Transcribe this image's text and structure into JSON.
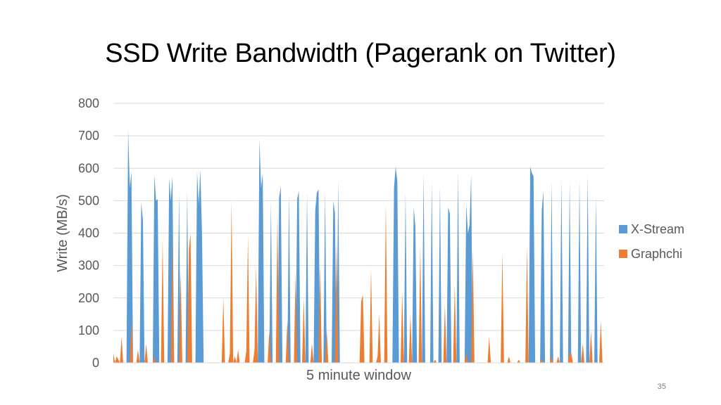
{
  "slide": {
    "title": "SSD Write Bandwidth (Pagerank on Twitter)",
    "page_number": "35"
  },
  "chart_data": {
    "type": "area",
    "title": "",
    "xlabel": "5 minute window",
    "ylabel": "Write (MB/s)",
    "ylim": [
      0,
      800
    ],
    "yticks": [
      "0",
      "100",
      "200",
      "300",
      "400",
      "500",
      "600",
      "700",
      "800"
    ],
    "grid": true,
    "legend": "right",
    "n_points": 300,
    "series": [
      {
        "name": "X-Stream",
        "color": "#5B9BD5",
        "points": [
          [
            8,
            0
          ],
          [
            9,
            720
          ],
          [
            10,
            540
          ],
          [
            11,
            590
          ],
          [
            12,
            0
          ],
          [
            16,
            0
          ],
          [
            17,
            495
          ],
          [
            18,
            440
          ],
          [
            19,
            0
          ],
          [
            24,
            0
          ],
          [
            25,
            580
          ],
          [
            26,
            500
          ],
          [
            27,
            505
          ],
          [
            28,
            0
          ],
          [
            33,
            0
          ],
          [
            34,
            570
          ],
          [
            35,
            500
          ],
          [
            36,
            575
          ],
          [
            37,
            0
          ],
          [
            39,
            0
          ],
          [
            40,
            525
          ],
          [
            41,
            0
          ],
          [
            44,
            0
          ],
          [
            45,
            530
          ],
          [
            46,
            0
          ],
          [
            50,
            0
          ],
          [
            51,
            590
          ],
          [
            52,
            490
          ],
          [
            53,
            595
          ],
          [
            54,
            400
          ],
          [
            55,
            0
          ],
          [
            88,
            0
          ],
          [
            89,
            690
          ],
          [
            90,
            540
          ],
          [
            91,
            585
          ],
          [
            92,
            0
          ],
          [
            95,
            0
          ],
          [
            96,
            495
          ],
          [
            97,
            0
          ],
          [
            100,
            0
          ],
          [
            101,
            510
          ],
          [
            102,
            545
          ],
          [
            103,
            0
          ],
          [
            106,
            0
          ],
          [
            107,
            520
          ],
          [
            108,
            0
          ],
          [
            111,
            0
          ],
          [
            112,
            505
          ],
          [
            113,
            530
          ],
          [
            114,
            0
          ],
          [
            117,
            0
          ],
          [
            118,
            525
          ],
          [
            119,
            0
          ],
          [
            122,
            0
          ],
          [
            123,
            470
          ],
          [
            124,
            525
          ],
          [
            125,
            535
          ],
          [
            126,
            0
          ],
          [
            128,
            0
          ],
          [
            129,
            530
          ],
          [
            130,
            0
          ],
          [
            133,
            0
          ],
          [
            134,
            500
          ],
          [
            135,
            460
          ],
          [
            136,
            0
          ],
          [
            137,
            565
          ],
          [
            138,
            0
          ],
          [
            170,
            0
          ],
          [
            171,
            540
          ],
          [
            172,
            605
          ],
          [
            173,
            560
          ],
          [
            174,
            0
          ],
          [
            177,
            0
          ],
          [
            178,
            525
          ],
          [
            179,
            0
          ],
          [
            182,
            0
          ],
          [
            183,
            480
          ],
          [
            184,
            420
          ],
          [
            185,
            0
          ],
          [
            188,
            0
          ],
          [
            189,
            585
          ],
          [
            190,
            0
          ],
          [
            193,
            0
          ],
          [
            194,
            560
          ],
          [
            195,
            0
          ],
          [
            198,
            0
          ],
          [
            199,
            545
          ],
          [
            200,
            0
          ],
          [
            203,
            0
          ],
          [
            204,
            480
          ],
          [
            205,
            460
          ],
          [
            206,
            0
          ],
          [
            209,
            0
          ],
          [
            210,
            590
          ],
          [
            211,
            0
          ],
          [
            214,
            0
          ],
          [
            215,
            490
          ],
          [
            216,
            400
          ],
          [
            217,
            425
          ],
          [
            218,
            580
          ],
          [
            219,
            0
          ],
          [
            253,
            0
          ],
          [
            254,
            605
          ],
          [
            255,
            585
          ],
          [
            256,
            575
          ],
          [
            257,
            0
          ],
          [
            260,
            0
          ],
          [
            261,
            470
          ],
          [
            262,
            530
          ],
          [
            263,
            0
          ],
          [
            266,
            0
          ],
          [
            267,
            560
          ],
          [
            268,
            0
          ],
          [
            272,
            0
          ],
          [
            273,
            565
          ],
          [
            274,
            0
          ],
          [
            277,
            0
          ],
          [
            278,
            560
          ],
          [
            279,
            0
          ],
          [
            283,
            0
          ],
          [
            284,
            565
          ],
          [
            285,
            0
          ],
          [
            288,
            0
          ],
          [
            289,
            580
          ],
          [
            290,
            0
          ],
          [
            293,
            0
          ],
          [
            294,
            515
          ],
          [
            295,
            0
          ]
        ]
      },
      {
        "name": "Graphchi",
        "color": "#ED7D31",
        "points": [
          [
            0,
            30
          ],
          [
            1,
            0
          ],
          [
            2,
            20
          ],
          [
            3,
            10
          ],
          [
            4,
            0
          ],
          [
            5,
            80
          ],
          [
            6,
            0
          ],
          [
            9,
            0
          ],
          [
            10,
            0
          ],
          [
            11,
            130
          ],
          [
            12,
            0
          ],
          [
            13,
            0
          ],
          [
            14,
            0
          ],
          [
            15,
            40
          ],
          [
            16,
            0
          ],
          [
            18,
            0
          ],
          [
            19,
            0
          ],
          [
            20,
            60
          ],
          [
            21,
            0
          ],
          [
            24,
            0
          ],
          [
            25,
            20
          ],
          [
            26,
            0
          ],
          [
            29,
            0
          ],
          [
            30,
            380
          ],
          [
            31,
            0
          ],
          [
            32,
            0
          ],
          [
            35,
            0
          ],
          [
            36,
            390
          ],
          [
            37,
            0
          ],
          [
            40,
            0
          ],
          [
            41,
            280
          ],
          [
            42,
            0
          ],
          [
            45,
            0
          ],
          [
            46,
            350
          ],
          [
            47,
            400
          ],
          [
            48,
            0
          ],
          [
            54,
            0
          ],
          [
            55,
            0
          ],
          [
            66,
            0
          ],
          [
            67,
            200
          ],
          [
            68,
            0
          ],
          [
            70,
            0
          ],
          [
            71,
            30
          ],
          [
            72,
            500
          ],
          [
            73,
            0
          ],
          [
            74,
            20
          ],
          [
            75,
            0
          ],
          [
            76,
            40
          ],
          [
            77,
            0
          ],
          [
            80,
            0
          ],
          [
            81,
            35
          ],
          [
            82,
            390
          ],
          [
            83,
            0
          ],
          [
            85,
            0
          ],
          [
            86,
            40
          ],
          [
            87,
            300
          ],
          [
            88,
            0
          ],
          [
            94,
            0
          ],
          [
            95,
            100
          ],
          [
            96,
            0
          ],
          [
            99,
            0
          ],
          [
            100,
            460
          ],
          [
            101,
            0
          ],
          [
            104,
            0
          ],
          [
            105,
            0
          ],
          [
            106,
            130
          ],
          [
            107,
            0
          ],
          [
            110,
            0
          ],
          [
            111,
            280
          ],
          [
            112,
            0
          ],
          [
            115,
            0
          ],
          [
            116,
            200
          ],
          [
            117,
            0
          ],
          [
            120,
            0
          ],
          [
            121,
            60
          ],
          [
            122,
            0
          ],
          [
            125,
            0
          ],
          [
            126,
            300
          ],
          [
            127,
            0
          ],
          [
            129,
            0
          ],
          [
            130,
            100
          ],
          [
            131,
            0
          ],
          [
            135,
            0
          ],
          [
            136,
            380
          ],
          [
            137,
            0
          ],
          [
            142,
            0
          ],
          [
            143,
            0
          ],
          [
            150,
            0
          ],
          [
            151,
            190
          ],
          [
            152,
            210
          ],
          [
            153,
            0
          ],
          [
            156,
            0
          ],
          [
            157,
            290
          ],
          [
            158,
            0
          ],
          [
            160,
            0
          ],
          [
            161,
            20
          ],
          [
            162,
            150
          ],
          [
            163,
            0
          ],
          [
            165,
            0
          ],
          [
            166,
            490
          ],
          [
            167,
            0
          ],
          [
            175,
            0
          ],
          [
            176,
            220
          ],
          [
            177,
            0
          ],
          [
            180,
            0
          ],
          [
            181,
            150
          ],
          [
            182,
            0
          ],
          [
            186,
            0
          ],
          [
            187,
            360
          ],
          [
            188,
            0
          ],
          [
            195,
            0
          ],
          [
            196,
            10
          ],
          [
            197,
            0
          ],
          [
            201,
            0
          ],
          [
            202,
            180
          ],
          [
            203,
            0
          ],
          [
            207,
            0
          ],
          [
            208,
            240
          ],
          [
            209,
            0
          ],
          [
            214,
            0
          ],
          [
            215,
            30
          ],
          [
            216,
            0
          ],
          [
            218,
            0
          ],
          [
            219,
            350
          ],
          [
            220,
            0
          ],
          [
            228,
            0
          ],
          [
            229,
            80
          ],
          [
            230,
            0
          ],
          [
            236,
            0
          ],
          [
            237,
            340
          ],
          [
            238,
            0
          ],
          [
            240,
            0
          ],
          [
            241,
            20
          ],
          [
            242,
            0
          ],
          [
            246,
            0
          ],
          [
            247,
            10
          ],
          [
            248,
            0
          ],
          [
            250,
            0
          ],
          [
            251,
            0
          ],
          [
            252,
            360
          ],
          [
            253,
            0
          ],
          [
            260,
            0
          ],
          [
            261,
            10
          ],
          [
            262,
            0
          ],
          [
            266,
            0
          ],
          [
            267,
            20
          ],
          [
            268,
            0
          ],
          [
            270,
            0
          ],
          [
            271,
            20
          ],
          [
            272,
            0
          ],
          [
            277,
            0
          ],
          [
            278,
            30
          ],
          [
            279,
            30
          ],
          [
            280,
            0
          ],
          [
            285,
            0
          ],
          [
            286,
            60
          ],
          [
            287,
            0
          ],
          [
            290,
            0
          ],
          [
            291,
            100
          ],
          [
            292,
            0
          ],
          [
            296,
            0
          ],
          [
            297,
            130
          ],
          [
            298,
            0
          ]
        ]
      }
    ]
  }
}
